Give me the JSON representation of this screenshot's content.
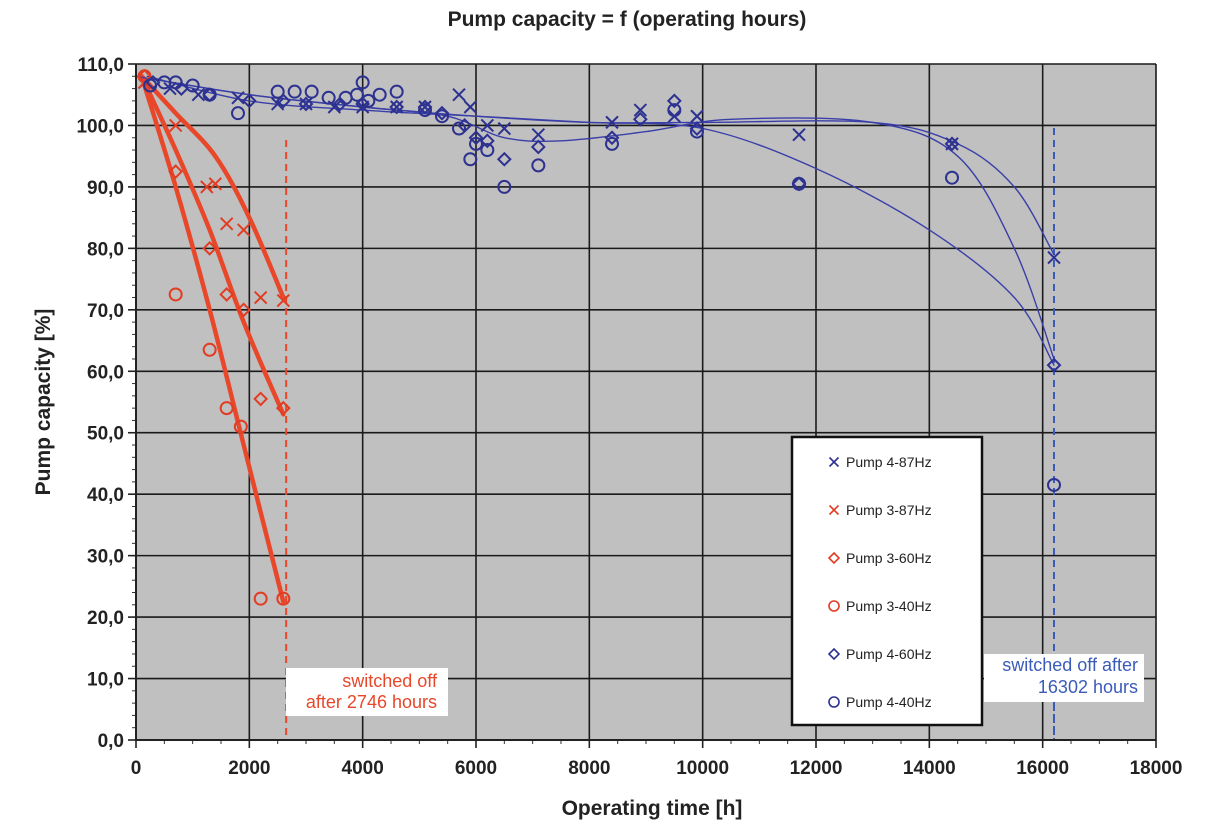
{
  "chart_data": {
    "type": "scatter",
    "title": "Pump capacity = f (operating hours)",
    "xlabel": "Operating time [h]",
    "ylabel": "Pump capacity [%]",
    "xlim": [
      0,
      18000
    ],
    "ylim": [
      0,
      110
    ],
    "x_ticks": [
      0,
      2000,
      4000,
      6000,
      8000,
      10000,
      12000,
      14000,
      16000,
      18000
    ],
    "x_tick_labels": [
      "0",
      "2000",
      "4000",
      "6000",
      "8000",
      "10000",
      "12000",
      "14000",
      "16000",
      "18000"
    ],
    "y_ticks": [
      0,
      10,
      20,
      30,
      40,
      50,
      60,
      70,
      80,
      90,
      100,
      110
    ],
    "y_tick_labels": [
      "0,0",
      "10,0",
      "20,0",
      "30,0",
      "40,0",
      "50,0",
      "60,0",
      "70,0",
      "80,0",
      "90,0",
      "100,0",
      "110,0"
    ],
    "grid": true,
    "legend_position": "bottom-right",
    "colors": {
      "plot_bg": "#c0c0c0",
      "red": "#e8472a",
      "blue": "#3a3f9e",
      "grid": "#1a1a1a"
    },
    "series": [
      {
        "name": "Pump  4-87Hz",
        "marker": "x",
        "color": "#2d3190",
        "points": [
          [
            150,
            107
          ],
          [
            600,
            106
          ],
          [
            1100,
            105
          ],
          [
            1800,
            104.5
          ],
          [
            2500,
            103.5
          ],
          [
            3000,
            103.5
          ],
          [
            3500,
            103
          ],
          [
            4000,
            103
          ],
          [
            4600,
            103
          ],
          [
            5100,
            103
          ],
          [
            5700,
            105
          ],
          [
            5900,
            103
          ],
          [
            6200,
            100
          ],
          [
            6500,
            99.5
          ],
          [
            7100,
            98.5
          ],
          [
            8400,
            100.5
          ],
          [
            8900,
            102.5
          ],
          [
            9500,
            101.5
          ],
          [
            9900,
            101.5
          ],
          [
            11700,
            98.5
          ],
          [
            14400,
            97
          ],
          [
            16200,
            78.5
          ]
        ],
        "fit": [
          [
            0,
            108
          ],
          [
            2000,
            105
          ],
          [
            4000,
            103
          ],
          [
            6000,
            101.5
          ],
          [
            8000,
            100.5
          ],
          [
            10000,
            100.5
          ],
          [
            13000,
            100.5
          ],
          [
            14500,
            97
          ],
          [
            15500,
            90
          ],
          [
            16200,
            79
          ]
        ]
      },
      {
        "name": "Pump  3-87Hz",
        "marker": "x",
        "color": "#e23c22",
        "points": [
          [
            150,
            107
          ],
          [
            700,
            100
          ],
          [
            1250,
            90
          ],
          [
            1400,
            90.5
          ],
          [
            1600,
            84
          ],
          [
            1900,
            83
          ],
          [
            2200,
            72
          ],
          [
            2600,
            71.5
          ]
        ],
        "fit": [
          [
            100,
            108
          ],
          [
            700,
            102
          ],
          [
            1400,
            95
          ],
          [
            2000,
            85
          ],
          [
            2600,
            72
          ]
        ]
      },
      {
        "name": "Pump  3-60Hz",
        "marker": "diamond",
        "color": "#e23c22",
        "points": [
          [
            150,
            108
          ],
          [
            700,
            92.5
          ],
          [
            1300,
            80
          ],
          [
            1600,
            72.5
          ],
          [
            1900,
            70
          ],
          [
            2200,
            55.5
          ],
          [
            2600,
            54
          ]
        ],
        "fit": [
          [
            100,
            108
          ],
          [
            700,
            96
          ],
          [
            1300,
            83
          ],
          [
            1900,
            68
          ],
          [
            2600,
            53
          ]
        ]
      },
      {
        "name": "Pump  3-40Hz",
        "marker": "circle",
        "color": "#e23c22",
        "points": [
          [
            150,
            108
          ],
          [
            700,
            72.5
          ],
          [
            1300,
            63.5
          ],
          [
            1600,
            54
          ],
          [
            1850,
            51
          ],
          [
            2200,
            23
          ],
          [
            2600,
            23
          ]
        ],
        "fit": [
          [
            100,
            108
          ],
          [
            700,
            90
          ],
          [
            1300,
            70
          ],
          [
            1900,
            48
          ],
          [
            2600,
            22.5
          ]
        ]
      },
      {
        "name": "Pump  4-60Hz",
        "marker": "diamond",
        "color": "#2d3190",
        "points": [
          [
            300,
            107
          ],
          [
            800,
            106
          ],
          [
            1300,
            105
          ],
          [
            2000,
            104
          ],
          [
            2600,
            104
          ],
          [
            3000,
            103.5
          ],
          [
            3600,
            103.5
          ],
          [
            4000,
            103.5
          ],
          [
            4600,
            103
          ],
          [
            5100,
            103
          ],
          [
            5400,
            102
          ],
          [
            5800,
            100
          ],
          [
            6000,
            98
          ],
          [
            6200,
            97.5
          ],
          [
            6500,
            94.5
          ],
          [
            7100,
            96.5
          ],
          [
            8400,
            98
          ],
          [
            8900,
            101
          ],
          [
            9500,
            104
          ],
          [
            9900,
            99.5
          ],
          [
            11700,
            90.5
          ],
          [
            14400,
            97
          ],
          [
            16200,
            61
          ]
        ],
        "fit": [
          [
            200,
            108
          ],
          [
            2000,
            104
          ],
          [
            4000,
            102.5
          ],
          [
            6000,
            101.5
          ],
          [
            8000,
            100.5
          ],
          [
            10000,
            99.5
          ],
          [
            12000,
            93
          ],
          [
            14000,
            83
          ],
          [
            15500,
            72
          ],
          [
            16200,
            61
          ]
        ]
      },
      {
        "name": "Pump  4-40Hz",
        "marker": "circle",
        "color": "#2d3190",
        "points": [
          [
            250,
            106.5
          ],
          [
            500,
            107
          ],
          [
            700,
            107
          ],
          [
            1000,
            106.5
          ],
          [
            1300,
            105
          ],
          [
            1800,
            102
          ],
          [
            2500,
            105.5
          ],
          [
            2800,
            105.5
          ],
          [
            3100,
            105.5
          ],
          [
            3400,
            104.5
          ],
          [
            3700,
            104.5
          ],
          [
            3900,
            105
          ],
          [
            4000,
            107
          ],
          [
            4100,
            104
          ],
          [
            4300,
            105
          ],
          [
            4600,
            105.5
          ],
          [
            5100,
            102.5
          ],
          [
            5400,
            101.5
          ],
          [
            5700,
            99.5
          ],
          [
            5900,
            94.5
          ],
          [
            6000,
            97
          ],
          [
            6200,
            96
          ],
          [
            6500,
            90
          ],
          [
            7100,
            93.5
          ],
          [
            8400,
            97
          ],
          [
            9500,
            102.5
          ],
          [
            9900,
            99
          ],
          [
            11700,
            90.5
          ],
          [
            14400,
            91.5
          ],
          [
            16200,
            41.5
          ]
        ],
        "fit": [
          [
            0,
            108
          ],
          [
            2000,
            105
          ],
          [
            4000,
            103
          ],
          [
            5500,
            101.5
          ],
          [
            6500,
            98
          ],
          [
            7500,
            97.5
          ],
          [
            9000,
            99
          ],
          [
            10500,
            101
          ],
          [
            13000,
            100.5
          ],
          [
            14500,
            95
          ],
          [
            15500,
            80
          ],
          [
            16200,
            62
          ]
        ]
      }
    ],
    "annotations": [
      {
        "text_lines": [
          "switched off",
          "after 2746 hours"
        ],
        "color": "#e8472a",
        "x": 2650
      },
      {
        "text_lines": [
          "switched off after",
          "16302 hours"
        ],
        "color": "#3a5bb8",
        "x": 16200
      }
    ]
  }
}
